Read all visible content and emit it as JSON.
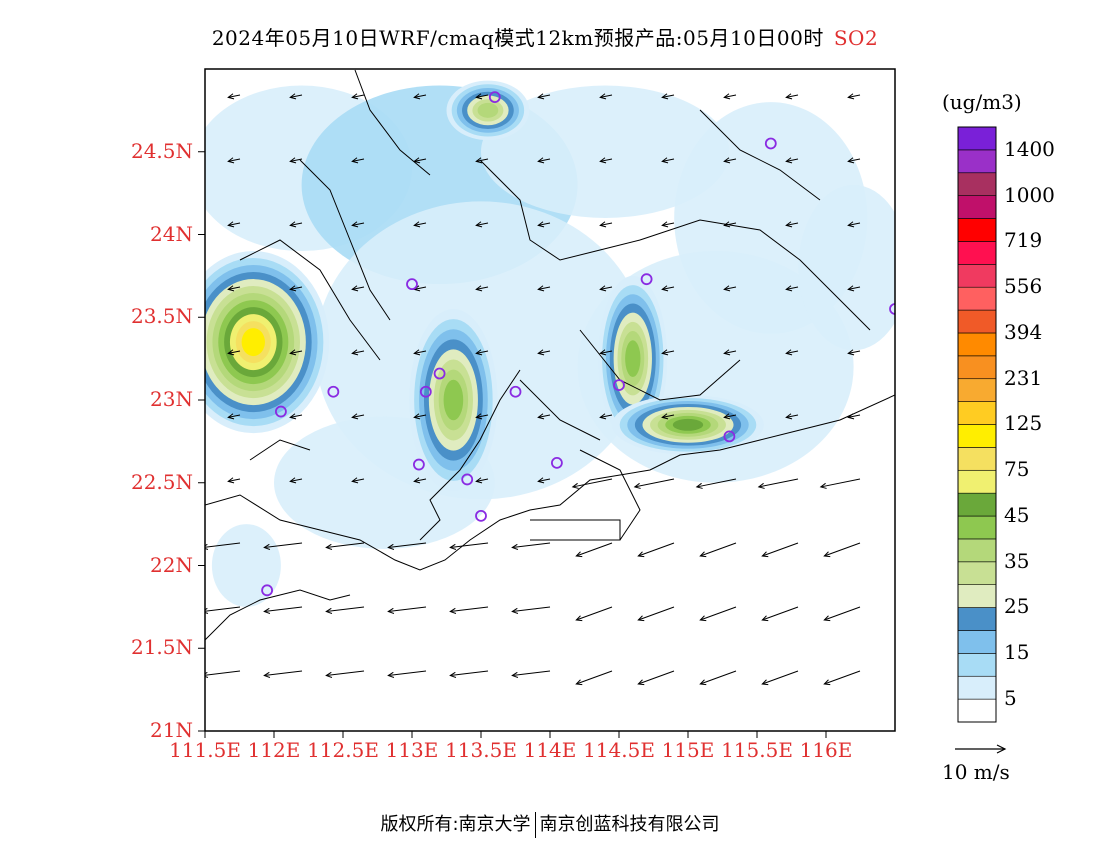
{
  "title": {
    "main": "2024年05月10日WRF/cmaq模式12km预报产品:05月10日00时",
    "pollutant": "SO2"
  },
  "axes": {
    "y_labels": [
      "24.5N",
      "24N",
      "23.5N",
      "23N",
      "22.5N",
      "22N",
      "21.5N",
      "21N"
    ],
    "y_values": [
      24.5,
      24.0,
      23.5,
      23.0,
      22.5,
      22.0,
      21.5,
      21.0
    ],
    "x_labels": [
      "111.5E",
      "112E",
      "112.5E",
      "113E",
      "113.5E",
      "114E",
      "114.5E",
      "115E",
      "115.5E",
      "116E"
    ],
    "x_values": [
      111.5,
      112.0,
      112.5,
      113.0,
      113.5,
      114.0,
      114.5,
      115.0,
      115.5,
      116.0
    ],
    "label_color": "#e03030"
  },
  "legend": {
    "unit": "(ug/m3)",
    "bins": [
      {
        "label": "5",
        "color": "#ffffff"
      },
      {
        "label": "",
        "color": "#d8eefb"
      },
      {
        "label": "15",
        "color": "#a8dcf5"
      },
      {
        "label": "",
        "color": "#7fc0ec"
      },
      {
        "label": "25",
        "color": "#4a90c8"
      },
      {
        "label": "",
        "color": "#e0ecc0"
      },
      {
        "label": "35",
        "color": "#c8e094"
      },
      {
        "label": "",
        "color": "#b4d87a"
      },
      {
        "label": "45",
        "color": "#8ec850"
      },
      {
        "label": "",
        "color": "#6aa83a"
      },
      {
        "label": "75",
        "color": "#f0f070"
      },
      {
        "label": "",
        "color": "#f5e060"
      },
      {
        "label": "125",
        "color": "#ffee00"
      },
      {
        "label": "",
        "color": "#ffcc22"
      },
      {
        "label": "231",
        "color": "#f8aa30"
      },
      {
        "label": "",
        "color": "#f89020"
      },
      {
        "label": "394",
        "color": "#ff8a00"
      },
      {
        "label": "",
        "color": "#f05a28"
      },
      {
        "label": "556",
        "color": "#ff6060"
      },
      {
        "label": "",
        "color": "#f03a60"
      },
      {
        "label": "719",
        "color": "#ff1050"
      },
      {
        "label": "",
        "color": "#ff0000"
      },
      {
        "label": "1000",
        "color": "#c0106a"
      },
      {
        "label": "",
        "color": "#a83060"
      },
      {
        "label": "1400",
        "color": "#9a30c8"
      },
      {
        "label": "",
        "color": "#7a20d8"
      }
    ]
  },
  "wind_reference": {
    "label": "10 m/s"
  },
  "credit": {
    "left": "版权所有:南京大学",
    "right": "南京创蓝科技有限公司"
  },
  "stations": [
    [
      113.6,
      24.83
    ],
    [
      115.6,
      24.55
    ],
    [
      113.0,
      23.7
    ],
    [
      114.7,
      23.73
    ],
    [
      116.5,
      23.55
    ],
    [
      112.43,
      23.05
    ],
    [
      112.05,
      22.93
    ],
    [
      113.1,
      23.05
    ],
    [
      113.2,
      23.16
    ],
    [
      113.75,
      23.05
    ],
    [
      114.5,
      23.09
    ],
    [
      115.3,
      22.78
    ],
    [
      113.05,
      22.61
    ],
    [
      113.4,
      22.52
    ],
    [
      114.05,
      22.62
    ],
    [
      113.5,
      22.3
    ],
    [
      111.95,
      21.85
    ]
  ],
  "plumes": [
    {
      "cx": 111.85,
      "cy": 23.35,
      "rx": 0.55,
      "ry": 0.55,
      "level": 12
    },
    {
      "cx": 113.3,
      "cy": 23.0,
      "rx": 0.32,
      "ry": 0.55,
      "level": 8
    },
    {
      "cx": 114.6,
      "cy": 23.25,
      "rx": 0.25,
      "ry": 0.5,
      "level": 8
    },
    {
      "cx": 115.0,
      "cy": 22.85,
      "rx": 0.55,
      "ry": 0.18,
      "level": 9
    },
    {
      "cx": 113.55,
      "cy": 24.75,
      "rx": 0.3,
      "ry": 0.18,
      "level": 7
    }
  ]
}
